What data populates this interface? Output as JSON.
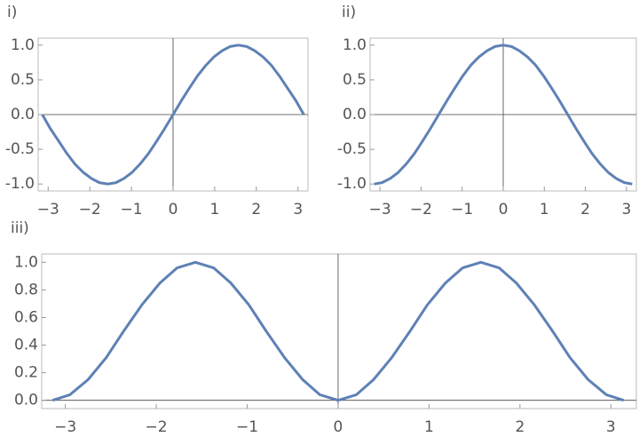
{
  "chart_data": [
    {
      "type": "line",
      "title": "i)",
      "color": "#5e81b5",
      "x": [
        -3.14,
        -2.95,
        -2.75,
        -2.55,
        -2.36,
        -2.16,
        -1.96,
        -1.77,
        -1.57,
        -1.37,
        -1.18,
        -0.98,
        -0.79,
        -0.59,
        -0.39,
        -0.2,
        0,
        0.2,
        0.39,
        0.59,
        0.79,
        0.98,
        1.18,
        1.37,
        1.57,
        1.77,
        1.96,
        2.16,
        2.36,
        2.55,
        2.75,
        2.95,
        3.14
      ],
      "values": [
        0,
        -0.2,
        -0.38,
        -0.56,
        -0.71,
        -0.83,
        -0.92,
        -0.98,
        -1,
        -0.98,
        -0.92,
        -0.83,
        -0.71,
        -0.56,
        -0.38,
        -0.2,
        0,
        0.2,
        0.38,
        0.56,
        0.71,
        0.83,
        0.92,
        0.98,
        1,
        0.98,
        0.92,
        0.83,
        0.71,
        0.56,
        0.38,
        0.2,
        0
      ],
      "xlim": [
        -3.24,
        3.24
      ],
      "ylim": [
        -1.1,
        1.1
      ],
      "xticks": [
        {
          "value": -3,
          "label": "−3"
        },
        {
          "value": -2,
          "label": "−2"
        },
        {
          "value": -1,
          "label": "−1"
        },
        0,
        1,
        2,
        3
      ],
      "yticks": [
        {
          "value": 1,
          "label": "1.0"
        },
        {
          "value": 0.5,
          "label": "0.5"
        },
        {
          "value": 0,
          "label": "0.0"
        },
        {
          "value": -0.5,
          "label": "-0.5"
        },
        {
          "value": -1,
          "label": "-1.0"
        }
      ]
    },
    {
      "type": "line",
      "title": "ii)",
      "color": "#5e81b5",
      "x": [
        -3.14,
        -2.95,
        -2.75,
        -2.55,
        -2.36,
        -2.16,
        -1.96,
        -1.77,
        -1.57,
        -1.37,
        -1.18,
        -0.98,
        -0.79,
        -0.59,
        -0.39,
        -0.2,
        0,
        0.2,
        0.39,
        0.59,
        0.79,
        0.98,
        1.18,
        1.37,
        1.57,
        1.77,
        1.96,
        2.16,
        2.36,
        2.55,
        2.75,
        2.95,
        3.14
      ],
      "values": [
        -1,
        -0.98,
        -0.92,
        -0.83,
        -0.71,
        -0.56,
        -0.38,
        -0.2,
        0,
        0.2,
        0.38,
        0.56,
        0.71,
        0.83,
        0.92,
        0.98,
        1,
        0.98,
        0.92,
        0.83,
        0.71,
        0.56,
        0.38,
        0.2,
        0,
        -0.2,
        -0.38,
        -0.56,
        -0.71,
        -0.83,
        -0.92,
        -0.98,
        -1
      ],
      "xlim": [
        -3.24,
        3.24
      ],
      "ylim": [
        -1.1,
        1.1
      ],
      "xticks": [
        {
          "value": -3,
          "label": "−3"
        },
        {
          "value": -2,
          "label": "−2"
        },
        {
          "value": -1,
          "label": "−1"
        },
        0,
        1,
        2,
        3
      ],
      "yticks": [
        {
          "value": 1,
          "label": "1.0"
        },
        {
          "value": 0.5,
          "label": "0.5"
        },
        {
          "value": 0,
          "label": "0.0"
        },
        {
          "value": -0.5,
          "label": "-0.5"
        },
        {
          "value": -1,
          "label": "-1.0"
        }
      ]
    },
    {
      "type": "line",
      "title": "iii)",
      "color": "#5e81b5",
      "x": [
        -3.14,
        -2.95,
        -2.75,
        -2.55,
        -2.36,
        -2.16,
        -1.96,
        -1.77,
        -1.57,
        -1.37,
        -1.18,
        -0.98,
        -0.79,
        -0.59,
        -0.39,
        -0.2,
        0,
        0.2,
        0.39,
        0.59,
        0.79,
        0.98,
        1.18,
        1.37,
        1.57,
        1.77,
        1.96,
        2.16,
        2.36,
        2.55,
        2.75,
        2.95,
        3.14
      ],
      "values": [
        0,
        0.04,
        0.15,
        0.31,
        0.5,
        0.69,
        0.85,
        0.96,
        1,
        0.96,
        0.85,
        0.69,
        0.5,
        0.31,
        0.15,
        0.04,
        0,
        0.04,
        0.15,
        0.31,
        0.5,
        0.69,
        0.85,
        0.96,
        1,
        0.96,
        0.85,
        0.69,
        0.5,
        0.31,
        0.15,
        0.04,
        0
      ],
      "xlim": [
        -3.26,
        3.28
      ],
      "ylim": [
        -0.06,
        1.06
      ],
      "xticks": [
        {
          "value": -3,
          "label": "−3"
        },
        {
          "value": -2,
          "label": "−2"
        },
        {
          "value": -1,
          "label": "−1"
        },
        0,
        1,
        2,
        3
      ],
      "yticks": [
        {
          "value": 0,
          "label": "0.0"
        },
        {
          "value": 0.2,
          "label": "0.2"
        },
        {
          "value": 0.4,
          "label": "0.4"
        },
        {
          "value": 0.6,
          "label": "0.6"
        },
        {
          "value": 0.8,
          "label": "0.8"
        },
        {
          "value": 1,
          "label": "1.0"
        }
      ]
    }
  ]
}
